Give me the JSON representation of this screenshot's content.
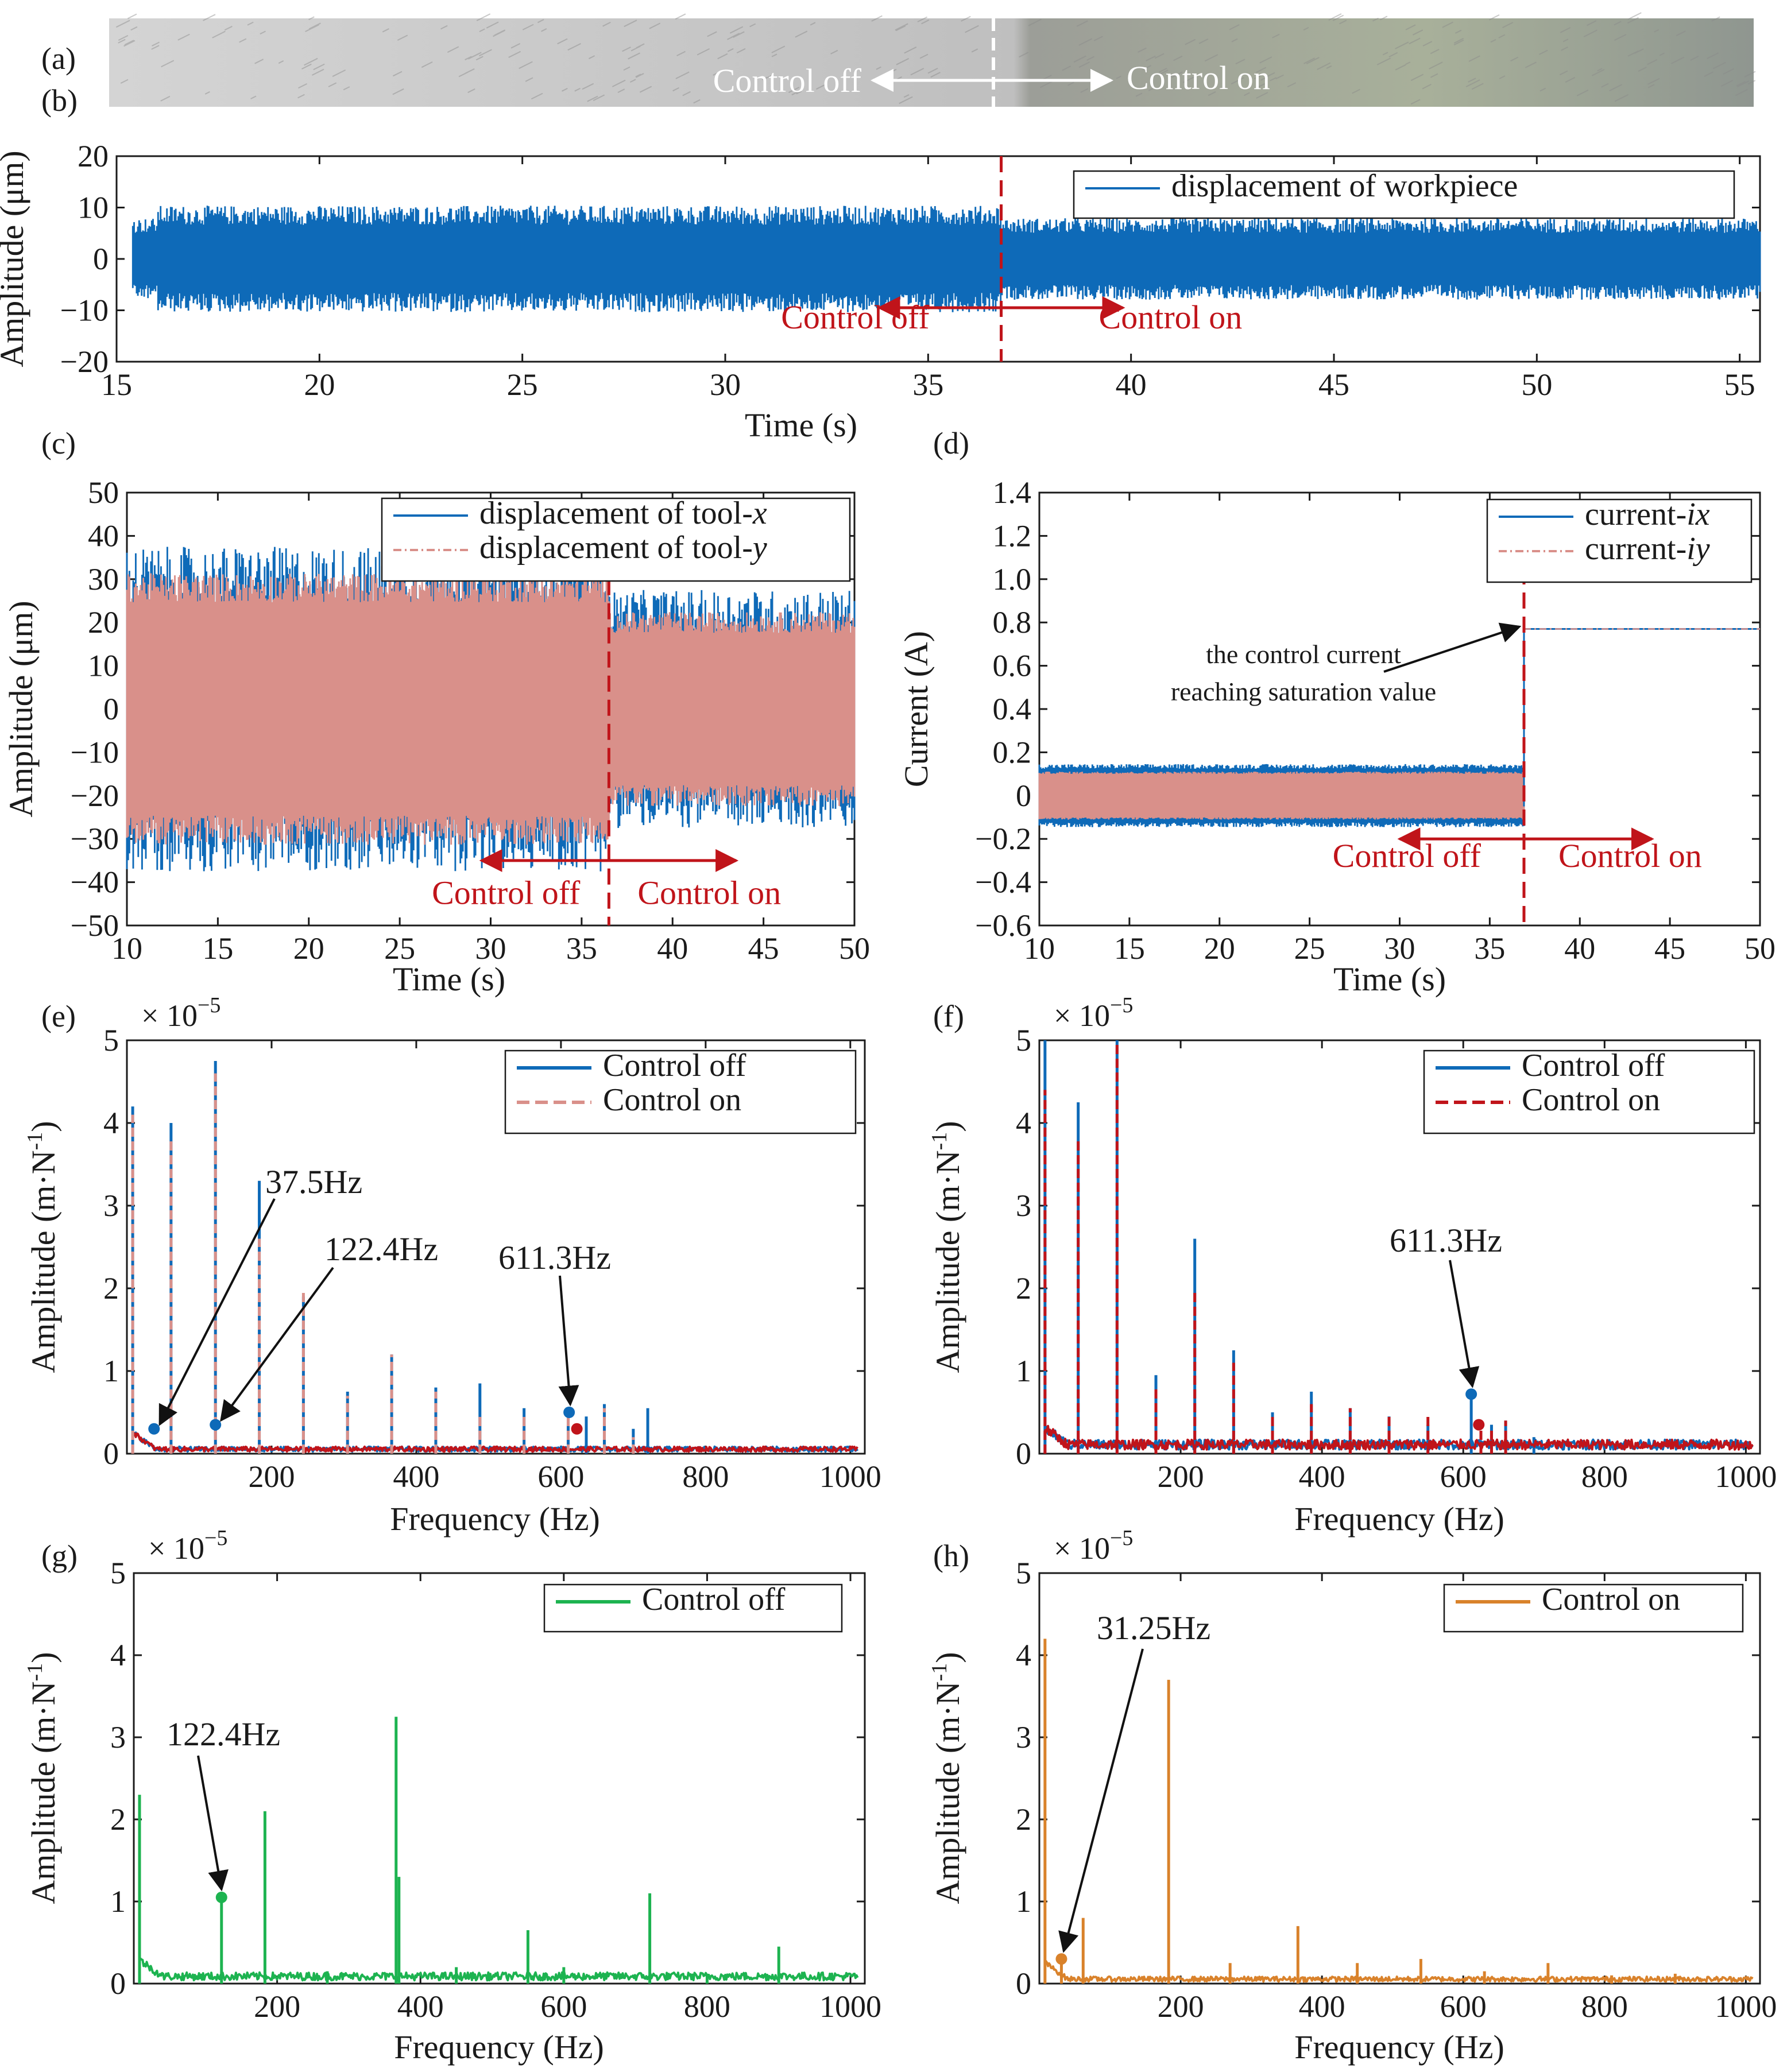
{
  "colors": {
    "blue": "#0e6ab8",
    "pink": "#d9908a",
    "red": "#c0141a",
    "green": "#1db350",
    "orange": "#d9822b",
    "axis": "#1a1a1a",
    "photo_left": "#c9c9c9",
    "photo_right": "#a6aca4"
  },
  "panel_a": {
    "label": "(a)",
    "control_off": "Control off",
    "control_on": "Control on"
  },
  "chart_data": [
    {
      "id": "b",
      "label": "(b)",
      "type": "line",
      "title": "",
      "xlabel": "Time (s)",
      "ylabel": "Amplitude (μm)",
      "xlim": [
        15,
        55.5
      ],
      "ylim": [
        -20,
        20
      ],
      "xticks": [
        15,
        20,
        25,
        30,
        35,
        40,
        45,
        50,
        55
      ],
      "yticks": [
        -20,
        -10,
        0,
        10,
        20
      ],
      "ytick_labels": [
        "−20",
        "−10",
        "0",
        "10",
        "20"
      ],
      "series": [
        {
          "name": "displacement of workpiece",
          "color": "#0e6ab8",
          "amp_off": 8.5,
          "amp_on": 6.5
        }
      ],
      "switch_time": 36.8,
      "arrow_range": [
        33.8,
        39.8
      ],
      "arrow_y": -9.5,
      "control_off": "Control off",
      "control_on": "Control on"
    },
    {
      "id": "c",
      "label": "(c)",
      "type": "line",
      "title": "",
      "xlabel": "Time (s)",
      "ylabel": "Amplitude (μm)",
      "xlim": [
        10,
        50
      ],
      "ylim": [
        -50,
        50
      ],
      "xticks": [
        10,
        15,
        20,
        25,
        30,
        35,
        40,
        45,
        50
      ],
      "yticks": [
        -50,
        -40,
        -30,
        -20,
        -10,
        0,
        10,
        20,
        30,
        40,
        50
      ],
      "ytick_labels": [
        "−50",
        "−40",
        "−30",
        "−20",
        "−10",
        "0",
        "10",
        "20",
        "30",
        "40",
        "50"
      ],
      "series": [
        {
          "name": "displacement of tool-",
          "var": "x",
          "color": "#0e6ab8",
          "amp_off": 30,
          "amp_on": 22
        },
        {
          "name": "displacement of tool-",
          "var": "y",
          "color": "#d9908a",
          "amp_off": 28,
          "amp_on": 20
        }
      ],
      "switch_time": 36.5,
      "arrow_range": [
        29.5,
        43.5
      ],
      "arrow_y": -35,
      "control_off": "Control off",
      "control_on": "Control on"
    },
    {
      "id": "d",
      "label": "(d)",
      "type": "line",
      "title": "",
      "xlabel": "Time (s)",
      "ylabel": "Current (A)",
      "xlim": [
        10,
        50
      ],
      "ylim": [
        -0.6,
        1.4
      ],
      "xticks": [
        10,
        15,
        20,
        25,
        30,
        35,
        40,
        45,
        50
      ],
      "yticks": [
        -0.6,
        -0.4,
        -0.2,
        0,
        0.2,
        0.4,
        0.6,
        0.8,
        1.0,
        1.2,
        1.4
      ],
      "ytick_labels": [
        "−0.6",
        "−0.4",
        "−0.2",
        "0",
        "0.2",
        "0.4",
        "0.6",
        "0.8",
        "1.0",
        "1.2",
        "1.4"
      ],
      "series": [
        {
          "name": "current-",
          "var": "ix",
          "color": "#0e6ab8",
          "band": [
            -0.13,
            0.14
          ],
          "saturation": 0.77
        },
        {
          "name": "current-",
          "var": "iy",
          "color": "#d9908a",
          "band": [
            -0.11,
            0.12
          ],
          "saturation": 0.77
        }
      ],
      "switch_time": 36.9,
      "arrow_range": [
        30,
        44
      ],
      "arrow_y": -0.2,
      "annotation_line1": "the control current",
      "annotation_line2": "reaching saturation value",
      "control_off": "Control off",
      "control_on": "Control on"
    },
    {
      "id": "e",
      "label": "(e)",
      "type": "line",
      "xlabel": "Frequency (Hz)",
      "ylabel": "Amplitude (m·N",
      "ylabel_sup": "-1",
      "ylabel_end": ")",
      "scale_prefix": "× 10",
      "scale_exp": "−5",
      "xlim": [
        0,
        1020
      ],
      "ylim": [
        0,
        5
      ],
      "xticks": [
        200,
        400,
        600,
        800,
        1000
      ],
      "yticks": [
        0,
        1,
        2,
        3,
        4,
        5
      ],
      "baseline": 0.05,
      "series": [
        {
          "name": "Control off",
          "color": "#0e6ab8",
          "style": "solid",
          "peaks": [
            [
              2,
              4.2
            ],
            [
              61,
              4.0
            ],
            [
              122.4,
              4.75
            ],
            [
              183,
              3.3
            ],
            [
              244,
              1.9
            ],
            [
              305,
              0.75
            ],
            [
              366,
              1.2
            ],
            [
              427,
              0.8
            ],
            [
              488,
              0.85
            ],
            [
              549,
              0.55
            ],
            [
              610,
              0.5
            ],
            [
              635,
              0.45
            ],
            [
              660,
              0.6
            ],
            [
              700,
              0.3
            ],
            [
              720,
              0.55
            ]
          ]
        },
        {
          "name": "Control on",
          "color": "#d9908a",
          "style": "dashed",
          "overlay_color": "#c0141a",
          "peaks": [
            [
              2,
              4.1
            ],
            [
              61,
              3.8
            ],
            [
              122.4,
              4.6
            ],
            [
              183,
              2.6
            ],
            [
              244,
              1.95
            ],
            [
              305,
              0.7
            ],
            [
              366,
              1.2
            ],
            [
              427,
              0.75
            ],
            [
              488,
              0.45
            ],
            [
              549,
              0.5
            ],
            [
              610,
              0.55
            ],
            [
              660,
              0.55
            ],
            [
              700,
              0.2
            ]
          ]
        }
      ],
      "markers": [
        {
          "f": 37.5,
          "amp": 0.3,
          "color": "#0e6ab8"
        },
        {
          "f": 122.4,
          "amp": 0.35,
          "color": "#0e6ab8"
        },
        {
          "f": 611.3,
          "amp": 0.5,
          "color": "#0e6ab8"
        },
        {
          "f": 622,
          "amp": 0.3,
          "color": "#c0141a"
        }
      ],
      "annotations": [
        "37.5Hz",
        "122.4Hz",
        "611.3Hz"
      ]
    },
    {
      "id": "f",
      "label": "(f)",
      "type": "line",
      "xlabel": "Frequency (Hz)",
      "ylabel": "Amplitude (m·N",
      "ylabel_sup": "-1",
      "ylabel_end": ")",
      "scale_prefix": "× 10",
      "scale_exp": "−5",
      "xlim": [
        0,
        1020
      ],
      "ylim": [
        0,
        5
      ],
      "xticks": [
        200,
        400,
        600,
        800,
        1000
      ],
      "yticks": [
        0,
        1,
        2,
        3,
        4,
        5
      ],
      "baseline": 0.1,
      "series": [
        {
          "name": "Control off",
          "color": "#0e6ab8",
          "style": "solid",
          "peaks": [
            [
              2,
              5.0
            ],
            [
              55,
              4.25
            ],
            [
              110,
              5.0
            ],
            [
              165,
              0.95
            ],
            [
              220,
              2.6
            ],
            [
              275,
              1.25
            ],
            [
              330,
              0.5
            ],
            [
              385,
              0.75
            ],
            [
              440,
              0.55
            ],
            [
              495,
              0.45
            ],
            [
              550,
              0.35
            ],
            [
              611.3,
              0.75
            ],
            [
              640,
              0.35
            ],
            [
              660,
              0.4
            ],
            [
              700,
              0.2
            ]
          ]
        },
        {
          "name": "Control on",
          "color": "#c0141a",
          "style": "dashed",
          "peaks": [
            [
              2,
              4.4
            ],
            [
              55,
              3.8
            ],
            [
              110,
              5.0
            ],
            [
              165,
              0.8
            ],
            [
              220,
              1.95
            ],
            [
              275,
              1.1
            ],
            [
              330,
              0.45
            ],
            [
              385,
              0.6
            ],
            [
              440,
              0.55
            ],
            [
              495,
              0.5
            ],
            [
              550,
              0.45
            ],
            [
              625,
              0.35
            ],
            [
              640,
              0.3
            ],
            [
              660,
              0.4
            ]
          ]
        }
      ],
      "markers": [
        {
          "f": 611.3,
          "amp": 0.72,
          "color": "#0e6ab8"
        },
        {
          "f": 622,
          "amp": 0.35,
          "color": "#c0141a"
        }
      ],
      "annotations": [
        "611.3Hz"
      ]
    },
    {
      "id": "g",
      "label": "(g)",
      "type": "line",
      "xlabel": "Frequency (Hz)",
      "ylabel": "Amplitude (m·N",
      "ylabel_sup": "-1",
      "ylabel_end": ")",
      "scale_prefix": "× 10",
      "scale_exp": "−5",
      "xlim": [
        0,
        1020
      ],
      "ylim": [
        0,
        5
      ],
      "xticks": [
        200,
        400,
        600,
        800,
        1000
      ],
      "yticks": [
        0,
        1,
        2,
        3,
        4,
        5
      ],
      "baseline": 0.08,
      "series": [
        {
          "name": "Control off",
          "color": "#1db350",
          "style": "solid",
          "peaks": [
            [
              2,
              2.3
            ],
            [
              122.4,
              1.05
            ],
            [
              183,
              2.1
            ],
            [
              270,
              0.15
            ],
            [
              366,
              3.25
            ],
            [
              370,
              1.3
            ],
            [
              450,
              0.2
            ],
            [
              550,
              0.65
            ],
            [
              600,
              0.2
            ],
            [
              720,
              1.1
            ],
            [
              800,
              0.12
            ],
            [
              900,
              0.45
            ]
          ]
        }
      ],
      "markers": [
        {
          "f": 122.4,
          "amp": 1.05,
          "color": "#1db350"
        }
      ],
      "annotations": [
        "122.4Hz"
      ]
    },
    {
      "id": "h",
      "label": "(h)",
      "type": "line",
      "xlabel": "Frequency (Hz)",
      "ylabel": "Amplitude (m·N",
      "ylabel_sup": "-1",
      "ylabel_end": ")",
      "scale_prefix": "× 10",
      "scale_exp": "−5",
      "xlim": [
        0,
        1020
      ],
      "ylim": [
        0,
        5
      ],
      "xticks": [
        200,
        400,
        600,
        800,
        1000
      ],
      "yticks": [
        0,
        1,
        2,
        3,
        4,
        5
      ],
      "ytick_labels": [
        "0",
        "1",
        "2",
        "3",
        "4",
        "5"
      ],
      "baseline": 0.05,
      "series": [
        {
          "name": "Control on",
          "color": "#d9822b",
          "style": "solid",
          "peaks": [
            [
              2,
              4.2
            ],
            [
              31.25,
              0.3
            ],
            [
              62,
              0.8
            ],
            [
              183,
              3.7
            ],
            [
              270,
              0.25
            ],
            [
              366,
              0.7
            ],
            [
              450,
              0.25
            ],
            [
              540,
              0.3
            ],
            [
              630,
              0.15
            ],
            [
              720,
              0.25
            ],
            [
              810,
              0.1
            ],
            [
              900,
              0.12
            ]
          ]
        }
      ],
      "markers": [
        {
          "f": 31.25,
          "amp": 0.3,
          "color": "#d9822b"
        }
      ],
      "annotations": [
        "31.25Hz"
      ]
    }
  ]
}
